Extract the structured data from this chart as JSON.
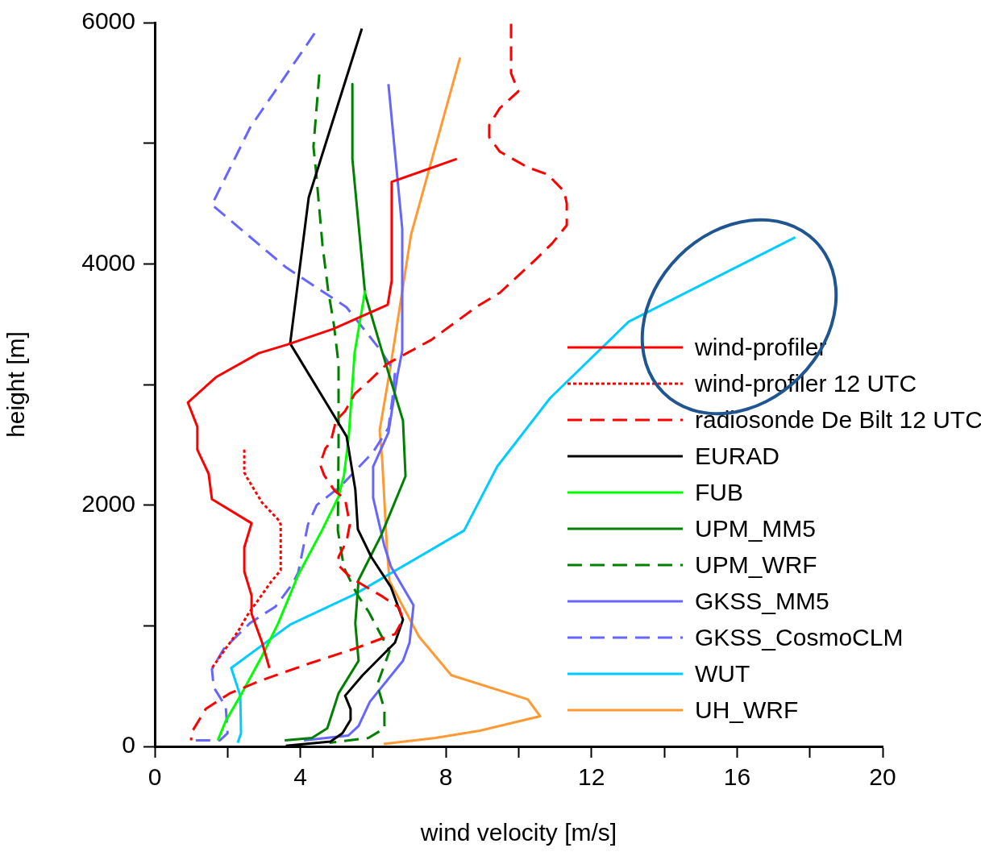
{
  "chart_data": {
    "type": "line",
    "xlabel": "wind velocity [m/s]",
    "ylabel": "height [m]",
    "xlim": [
      0,
      20
    ],
    "ylim": [
      0,
      6000
    ],
    "xticks": [
      0,
      {
        "value": 2,
        "label": null
      },
      4,
      {
        "value": 6,
        "label": null
      },
      8,
      {
        "value": 10,
        "label": null
      },
      12,
      {
        "value": 14,
        "label": null
      },
      16,
      {
        "value": 18,
        "label": null
      },
      20
    ],
    "yticks": [
      0,
      {
        "value": 1000,
        "label": null
      },
      2000,
      {
        "value": 3000,
        "label": null
      },
      4000,
      {
        "value": 5000,
        "label": null
      },
      6000
    ],
    "grid": false,
    "legend": "right",
    "marker": "none",
    "series": [
      {
        "name": "wind-profiler",
        "color": "#ff0000",
        "line_style": "solid",
        "x": [
          8.3,
          6.51,
          6.51,
          6.4,
          4.9,
          3.63,
          2.86,
          1.68,
          0.91,
          1.17,
          1.17,
          1.48,
          1.57,
          2.66,
          2.46,
          2.46,
          2.66,
          2.66,
          2.95,
          3.15
        ],
        "values": [
          4870,
          4680,
          3860,
          3660,
          3460,
          3330,
          3260,
          3060,
          2850,
          2650,
          2460,
          2260,
          2050,
          1850,
          1650,
          1450,
          1250,
          1100,
          860,
          650
        ]
      },
      {
        "name": "wind-profiler 12 UTC",
        "color": "#ff0000",
        "line_style": "dotted",
        "x": [
          2.46,
          2.46,
          2.55,
          2.95,
          3.39,
          3.46,
          3.46,
          3.21,
          2.55,
          2.28,
          1.9,
          1.57
        ],
        "values": [
          2460,
          2270,
          2220,
          2020,
          1880,
          1840,
          1460,
          1370,
          1090,
          950,
          790,
          650
        ]
      },
      {
        "name": "radiosonde De Bilt 12 UTC",
        "color": "#ff0000",
        "line_style": "dashed",
        "x": [
          9.79,
          9.79,
          9.99,
          9.48,
          9.19,
          9.19,
          9.48,
          10.25,
          10.8,
          11.25,
          11.32,
          11.32,
          10.92,
          10.48,
          9.48,
          8.82,
          7.6,
          6.38,
          5.93,
          5.49,
          5.23,
          4.98,
          4.83,
          4.69,
          4.54,
          4.65,
          4.94,
          5.23,
          5.36,
          5.27,
          5.05,
          5.05,
          5.38,
          5.71,
          6.27,
          6.71,
          6.82,
          6.6,
          6.38,
          5.49,
          4.27,
          2.95,
          2.06,
          1.4,
          1.0,
          1.0
        ],
        "values": [
          5990,
          5580,
          5430,
          5290,
          5150,
          5050,
          4930,
          4800,
          4740,
          4600,
          4500,
          4320,
          4170,
          4040,
          3760,
          3640,
          3370,
          3170,
          3040,
          2920,
          2780,
          2700,
          2520,
          2470,
          2340,
          2250,
          2120,
          2050,
          1840,
          1700,
          1570,
          1500,
          1400,
          1340,
          1240,
          1150,
          1050,
          930,
          910,
          810,
          690,
          550,
          440,
          310,
          110,
          50
        ]
      },
      {
        "name": "EURAD",
        "color": "#000000",
        "line_style": "solid",
        "x": [
          5.69,
          4.23,
          3.72,
          5.27,
          5.51,
          5.58,
          5.95,
          6.49,
          6.82,
          6.6,
          5.71,
          5.23,
          5.38,
          5.38,
          5.16,
          4.83,
          3.6
        ],
        "values": [
          5950,
          4550,
          3340,
          2570,
          2130,
          1800,
          1570,
          1320,
          1050,
          860,
          590,
          420,
          310,
          220,
          110,
          40,
          5
        ]
      },
      {
        "name": "FUB",
        "color": "#00ff00",
        "line_style": "solid",
        "x": [
          5.78,
          5.49,
          5.4,
          5.33,
          5.2,
          5.05,
          4.61,
          3.94,
          3.39,
          2.95,
          2.39,
          1.95,
          1.73
        ],
        "values": [
          3780,
          3260,
          2870,
          2570,
          2250,
          2070,
          1800,
          1420,
          1020,
          750,
          440,
          210,
          50
        ]
      },
      {
        "name": "UPM_MM5",
        "color": "#008000",
        "line_style": "solid",
        "x": [
          5.43,
          5.43,
          5.78,
          6.22,
          6.82,
          6.89,
          6.22,
          5.6,
          5.56,
          5.51,
          5.6,
          5.05,
          4.74,
          4.32,
          3.57
        ],
        "values": [
          5490,
          4870,
          3750,
          3300,
          2700,
          2240,
          1750,
          1380,
          1220,
          1020,
          710,
          440,
          150,
          70,
          50
        ]
      },
      {
        "name": "UPM_WRF",
        "color": "#008000",
        "line_style": "dashed",
        "x": [
          4.52,
          4.36,
          4.43,
          4.61,
          4.76,
          4.92,
          5.05,
          5.05,
          5.03,
          5.2,
          5.56,
          5.87,
          6.45,
          6.11,
          6.31,
          6.31,
          5.87,
          4.8
        ],
        "values": [
          5570,
          4970,
          4770,
          4150,
          3790,
          3500,
          3170,
          2500,
          1790,
          1480,
          1260,
          1120,
          790,
          510,
          310,
          150,
          70,
          30
        ]
      },
      {
        "name": "GKSS_MM5",
        "color": "#6666ff",
        "line_style": "solid",
        "x": [
          6.42,
          6.8,
          6.8,
          6.67,
          6.42,
          6.0,
          6.0,
          6.31,
          6.49,
          7.11,
          7.0,
          6.82,
          5.91,
          5.6,
          5.32,
          4.1
        ],
        "values": [
          5490,
          4290,
          3280,
          3080,
          2600,
          2320,
          2060,
          1660,
          1490,
          1170,
          860,
          710,
          370,
          170,
          90,
          50
        ]
      },
      {
        "name": "GKSS_CosmoCLM",
        "color": "#6666ff",
        "line_style": "dashed",
        "x": [
          4.39,
          2.62,
          1.57,
          3.61,
          5.27,
          6.16,
          6.6,
          6.53,
          6.42,
          6.0,
          5.12,
          4.45,
          4.21,
          3.94,
          3.79,
          3.32,
          2.61,
          1.9,
          1.57,
          1.62,
          1.95,
          2.0,
          1.79,
          1.06
        ],
        "values": [
          5910,
          5130,
          4490,
          3970,
          3640,
          3300,
          3100,
          2880,
          2640,
          2440,
          2160,
          2000,
          1840,
          1440,
          1350,
          1160,
          1020,
          810,
          640,
          490,
          330,
          110,
          50,
          50
        ]
      },
      {
        "name": "WUT",
        "color": "#00ccff",
        "line_style": "solid",
        "x": [
          17.6,
          13.02,
          10.87,
          9.41,
          8.5,
          5.49,
          3.72,
          2.1,
          2.35,
          2.37,
          2.28
        ],
        "values": [
          4220,
          3520,
          2890,
          2320,
          1790,
          1260,
          1010,
          650,
          420,
          110,
          30
        ]
      },
      {
        "name": "UH_WRF",
        "color": "#ff9933",
        "line_style": "solid",
        "x": [
          8.39,
          7.04,
          6.49,
          6.18,
          6.25,
          6.38,
          6.45,
          7.26,
          8.15,
          10.25,
          10.59,
          8.93,
          7.71,
          6.29
        ],
        "values": [
          5710,
          4240,
          3170,
          2620,
          2370,
          1640,
          1370,
          910,
          590,
          390,
          250,
          130,
          70,
          20
        ]
      }
    ]
  }
}
